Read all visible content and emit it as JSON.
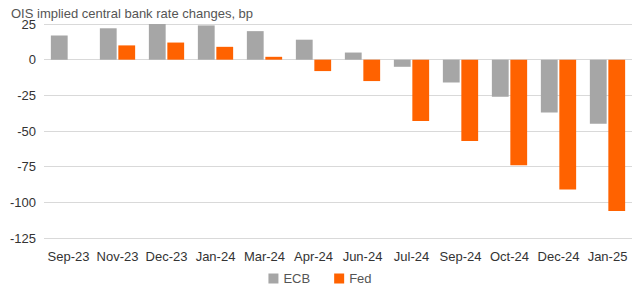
{
  "chart_data": {
    "type": "bar",
    "title": "OIS implied central bank rate changes, bp",
    "categories": [
      "Sep-23",
      "Nov-23",
      "Dec-23",
      "Jan-24",
      "Mar-24",
      "Apr-24",
      "Jun-24",
      "Jul-24",
      "Sep-24",
      "Oct-24",
      "Dec-24",
      "Jan-25"
    ],
    "series": [
      {
        "name": "ECB",
        "color": "#a6a6a6",
        "values": [
          17,
          22,
          25,
          24,
          20,
          14,
          5,
          -5,
          -16,
          -26,
          -37,
          -45
        ]
      },
      {
        "name": "Fed",
        "color": "#ff6200",
        "values": [
          0,
          10,
          12,
          9,
          2,
          -8,
          -15,
          -43,
          -57,
          -74,
          -91,
          -106
        ]
      }
    ],
    "ylim": [
      -125,
      25
    ],
    "yticks": [
      -125,
      -100,
      -75,
      -50,
      -25,
      0,
      25
    ],
    "grid": true,
    "legend": "bottom"
  }
}
